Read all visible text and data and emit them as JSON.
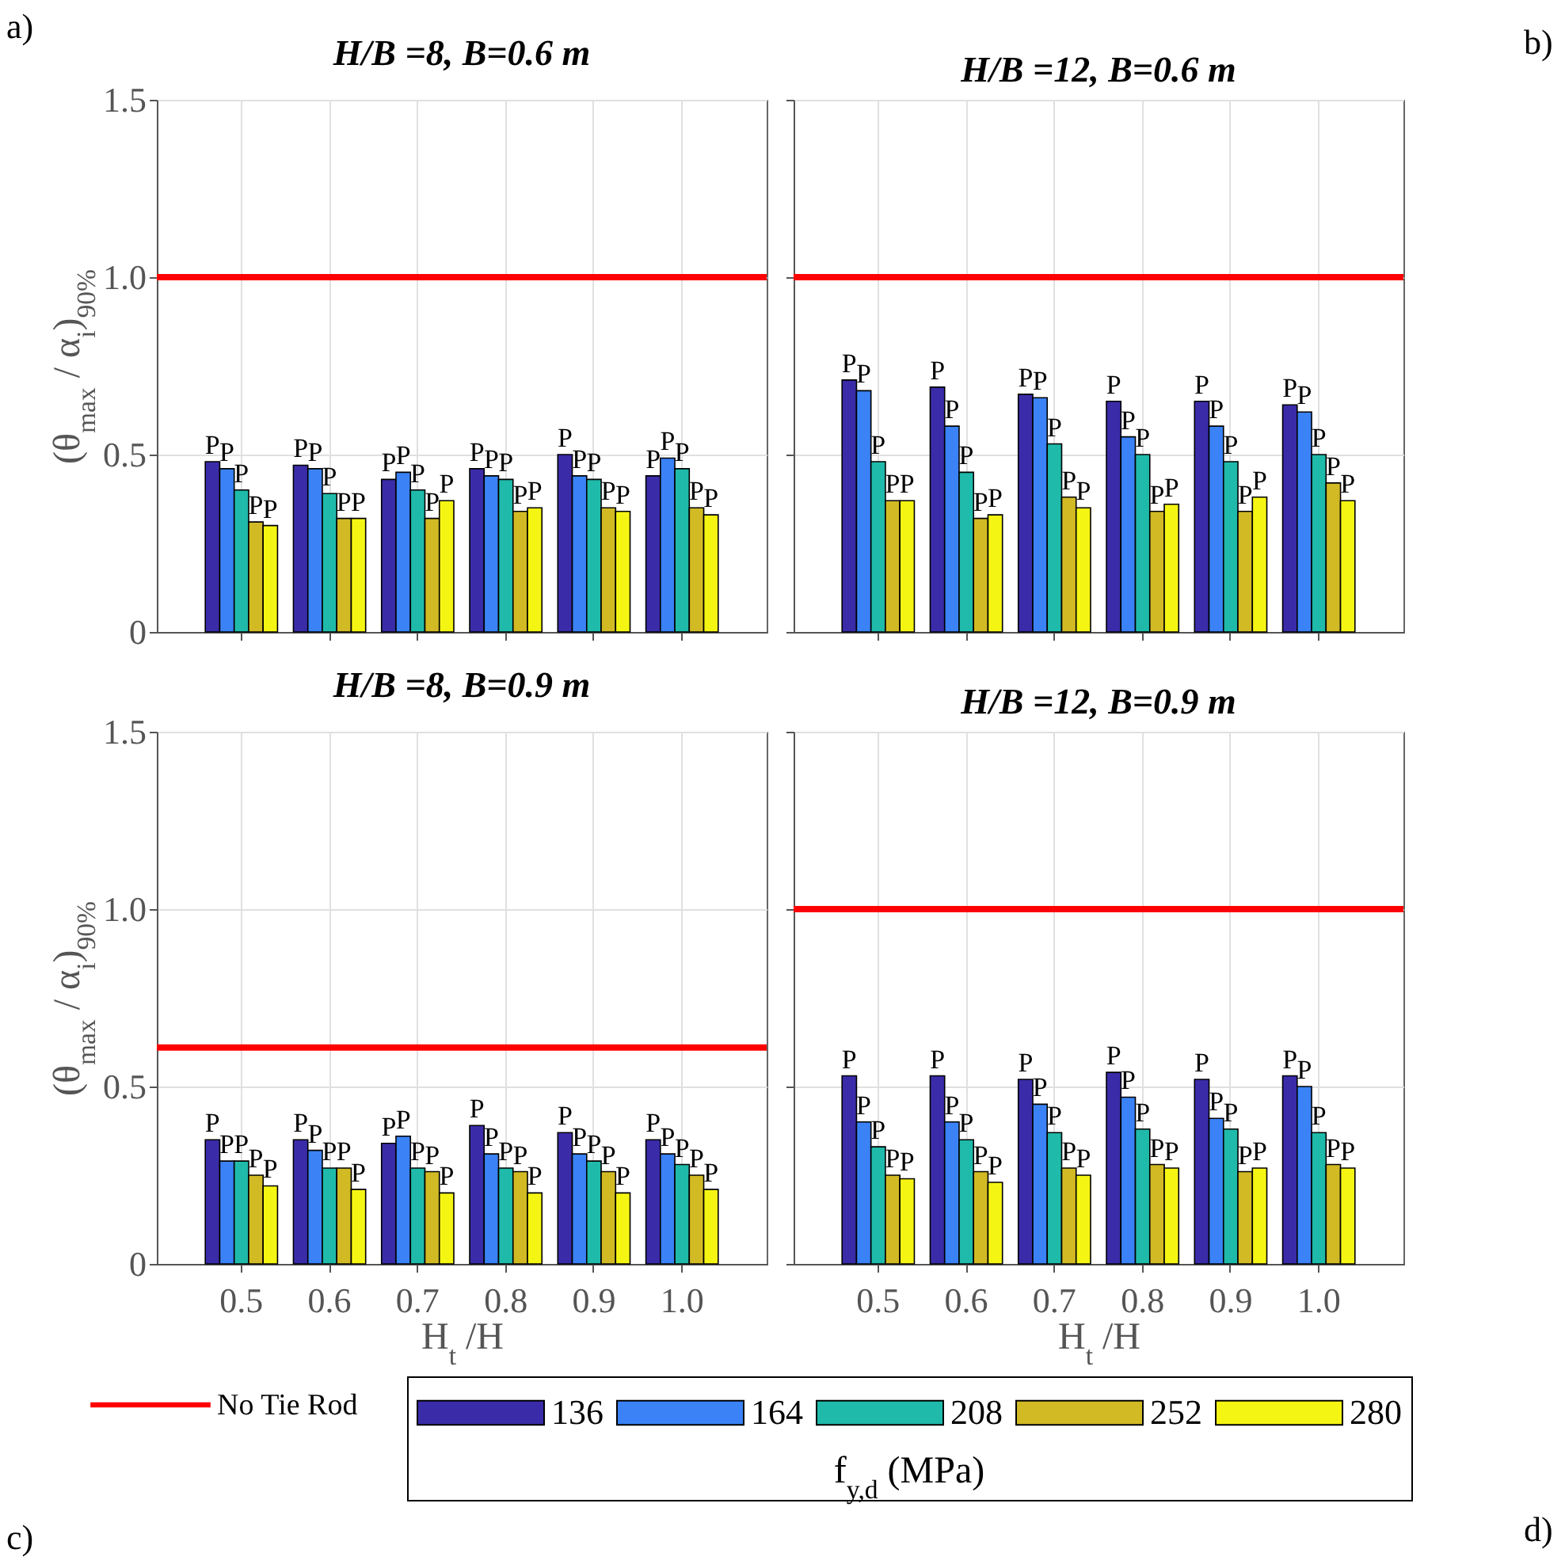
{
  "chart_data": [
    {
      "type": "bar",
      "title": "H/B =8, B=0.6 m",
      "ylabel": "(θ$_{max}$ / α$_{i}$)$_{90%}$",
      "categories": [
        "0.5",
        "0.6",
        "0.7",
        "0.8",
        "0.9",
        "1.0"
      ],
      "ylim": [
        0,
        1.5
      ],
      "yticks": [
        0,
        0.5,
        {
          "value": 1,
          "label": "1.0"
        },
        1.5
      ],
      "grid": true,
      "tick_labels": "y",
      "legend": "bottom",
      "legend_title": "f$_{y,d}$ (MPa)",
      "annotations": [
        "a)"
      ],
      "ref_lines": [
        {
          "axis": "y",
          "value": 1,
          "label": "No Tie Rod",
          "color": "#ff0000"
        }
      ],
      "series": [
        {
          "name": "136",
          "color": "#3a2ca8",
          "values": [
            0.48,
            0.47,
            0.43,
            0.46,
            0.5,
            0.44
          ],
          "value_labels": [
            "P",
            "P",
            "P",
            "P",
            "P",
            "P"
          ]
        },
        {
          "name": "164",
          "color": "#3a82f6",
          "values": [
            0.46,
            0.46,
            0.45,
            0.44,
            0.44,
            0.49
          ],
          "value_labels": [
            "P",
            "P",
            "P",
            "P",
            "P",
            "P"
          ]
        },
        {
          "name": "208",
          "color": "#1fbaa9",
          "values": [
            0.4,
            0.39,
            0.4,
            0.43,
            0.43,
            0.46
          ],
          "value_labels": [
            "P",
            "P",
            "P",
            "P",
            "P",
            "P"
          ]
        },
        {
          "name": "252",
          "color": "#d2ba25",
          "values": [
            0.31,
            0.32,
            0.32,
            0.34,
            0.35,
            0.35
          ],
          "value_labels": [
            "P",
            "P",
            "P",
            "P",
            "P",
            "P"
          ]
        },
        {
          "name": "280",
          "color": "#f5f514",
          "values": [
            0.3,
            0.32,
            0.37,
            0.35,
            0.34,
            0.33
          ],
          "value_labels": [
            "P",
            "P",
            "P",
            "P",
            "P",
            "P"
          ]
        }
      ]
    },
    {
      "type": "bar",
      "title": "H/B =12, B=0.6 m",
      "categories": [
        "0.5",
        "0.6",
        "0.7",
        "0.8",
        "0.9",
        "1.0"
      ],
      "ylim": [
        0,
        1.5
      ],
      "yticks": [
        0,
        0.5,
        1,
        1.5
      ],
      "grid": true,
      "tick_labels": false,
      "annotations": [
        "b)"
      ],
      "ref_lines": [
        {
          "axis": "y",
          "value": 1,
          "color": "#ff0000"
        }
      ],
      "series": [
        {
          "name": "136",
          "color": "#3a2ca8",
          "values": [
            0.71,
            0.69,
            0.67,
            0.65,
            0.65,
            0.64
          ],
          "value_labels": [
            "P",
            "P",
            "P",
            "P",
            "P",
            "P"
          ]
        },
        {
          "name": "164",
          "color": "#3a82f6",
          "values": [
            0.68,
            0.58,
            0.66,
            0.55,
            0.58,
            0.62
          ],
          "value_labels": [
            "P",
            "P",
            "P",
            "P",
            "P",
            "P"
          ]
        },
        {
          "name": "208",
          "color": "#1fbaa9",
          "values": [
            0.48,
            0.45,
            0.53,
            0.5,
            0.48,
            0.5
          ],
          "value_labels": [
            "P",
            "P",
            "P",
            "P",
            "P",
            "P"
          ]
        },
        {
          "name": "252",
          "color": "#d2ba25",
          "values": [
            0.37,
            0.32,
            0.38,
            0.34,
            0.34,
            0.42
          ],
          "value_labels": [
            "P",
            "P",
            "P",
            "P",
            "P",
            "P"
          ]
        },
        {
          "name": "280",
          "color": "#f5f514",
          "values": [
            0.37,
            0.33,
            0.35,
            0.36,
            0.38,
            0.37
          ],
          "value_labels": [
            "P",
            "P",
            "P",
            "P",
            "P",
            "P"
          ]
        }
      ]
    },
    {
      "type": "bar",
      "title": "H/B =8, B=0.9 m",
      "xlabel": "H$_{t}$ /H",
      "ylabel": "(θ$_{max}$ / α$_{i}$)$_{90%}$",
      "categories": [
        "0.5",
        "0.6",
        "0.7",
        "0.8",
        "0.9",
        "1.0"
      ],
      "ylim": [
        0,
        1.5
      ],
      "yticks": [
        0,
        0.5,
        {
          "value": 1,
          "label": "1.0"
        },
        1.5
      ],
      "grid": true,
      "annotations": [
        "c)"
      ],
      "ref_lines": [
        {
          "axis": "y",
          "value": 0.61,
          "color": "#ff0000"
        }
      ],
      "series": [
        {
          "name": "136",
          "color": "#3a2ca8",
          "values": [
            0.35,
            0.35,
            0.34,
            0.39,
            0.37,
            0.35
          ],
          "value_labels": [
            "P",
            "P",
            "P",
            "P",
            "P",
            "P"
          ]
        },
        {
          "name": "164",
          "color": "#3a82f6",
          "values": [
            0.29,
            0.32,
            0.36,
            0.31,
            0.31,
            0.31
          ],
          "value_labels": [
            "P",
            "P",
            "P",
            "P",
            "P",
            "P"
          ]
        },
        {
          "name": "208",
          "color": "#1fbaa9",
          "values": [
            0.29,
            0.27,
            0.27,
            0.27,
            0.29,
            0.28
          ],
          "value_labels": [
            "P",
            "P",
            "P",
            "P",
            "P",
            "P"
          ]
        },
        {
          "name": "252",
          "color": "#d2ba25",
          "values": [
            0.25,
            0.27,
            0.26,
            0.26,
            0.26,
            0.25
          ],
          "value_labels": [
            "P",
            "P",
            "P",
            "P",
            "P",
            "P"
          ]
        },
        {
          "name": "280",
          "color": "#f5f514",
          "values": [
            0.22,
            0.21,
            0.2,
            0.2,
            0.2,
            0.21
          ],
          "value_labels": [
            "P",
            "P",
            "P",
            "P",
            "P",
            "P"
          ]
        }
      ]
    },
    {
      "type": "bar",
      "title": "H/B =12, B=0.9 m",
      "xlabel": "H$_{t}$ /H",
      "categories": [
        "0.5",
        "0.6",
        "0.7",
        "0.8",
        "0.9",
        "1.0"
      ],
      "ylim": [
        0,
        1.5
      ],
      "yticks": [
        0,
        0.5,
        1,
        1.5
      ],
      "grid": true,
      "tick_labels": "x",
      "annotations": [
        "d)"
      ],
      "ref_lines": [
        {
          "axis": "y",
          "value": 1,
          "color": "#ff0000"
        }
      ],
      "series": [
        {
          "name": "136",
          "color": "#3a2ca8",
          "values": [
            0.53,
            0.53,
            0.52,
            0.54,
            0.52,
            0.53
          ],
          "value_labels": [
            "P",
            "P",
            "P",
            "P",
            "P",
            "P"
          ]
        },
        {
          "name": "164",
          "color": "#3a82f6",
          "values": [
            0.4,
            0.4,
            0.45,
            0.47,
            0.41,
            0.5
          ],
          "value_labels": [
            "P",
            "P",
            "P",
            "P",
            "P",
            "P"
          ]
        },
        {
          "name": "208",
          "color": "#1fbaa9",
          "values": [
            0.33,
            0.35,
            0.37,
            0.38,
            0.38,
            0.37
          ],
          "value_labels": [
            "P",
            "P",
            "P",
            "P",
            "P",
            "P"
          ]
        },
        {
          "name": "252",
          "color": "#d2ba25",
          "values": [
            0.25,
            0.26,
            0.27,
            0.28,
            0.26,
            0.28
          ],
          "value_labels": [
            "P",
            "P",
            "P",
            "P",
            "P",
            "P"
          ]
        },
        {
          "name": "280",
          "color": "#f5f514",
          "values": [
            0.24,
            0.23,
            0.25,
            0.27,
            0.27,
            0.27
          ],
          "value_labels": [
            "P",
            "P",
            "P",
            "P",
            "P",
            "P"
          ]
        }
      ]
    }
  ]
}
